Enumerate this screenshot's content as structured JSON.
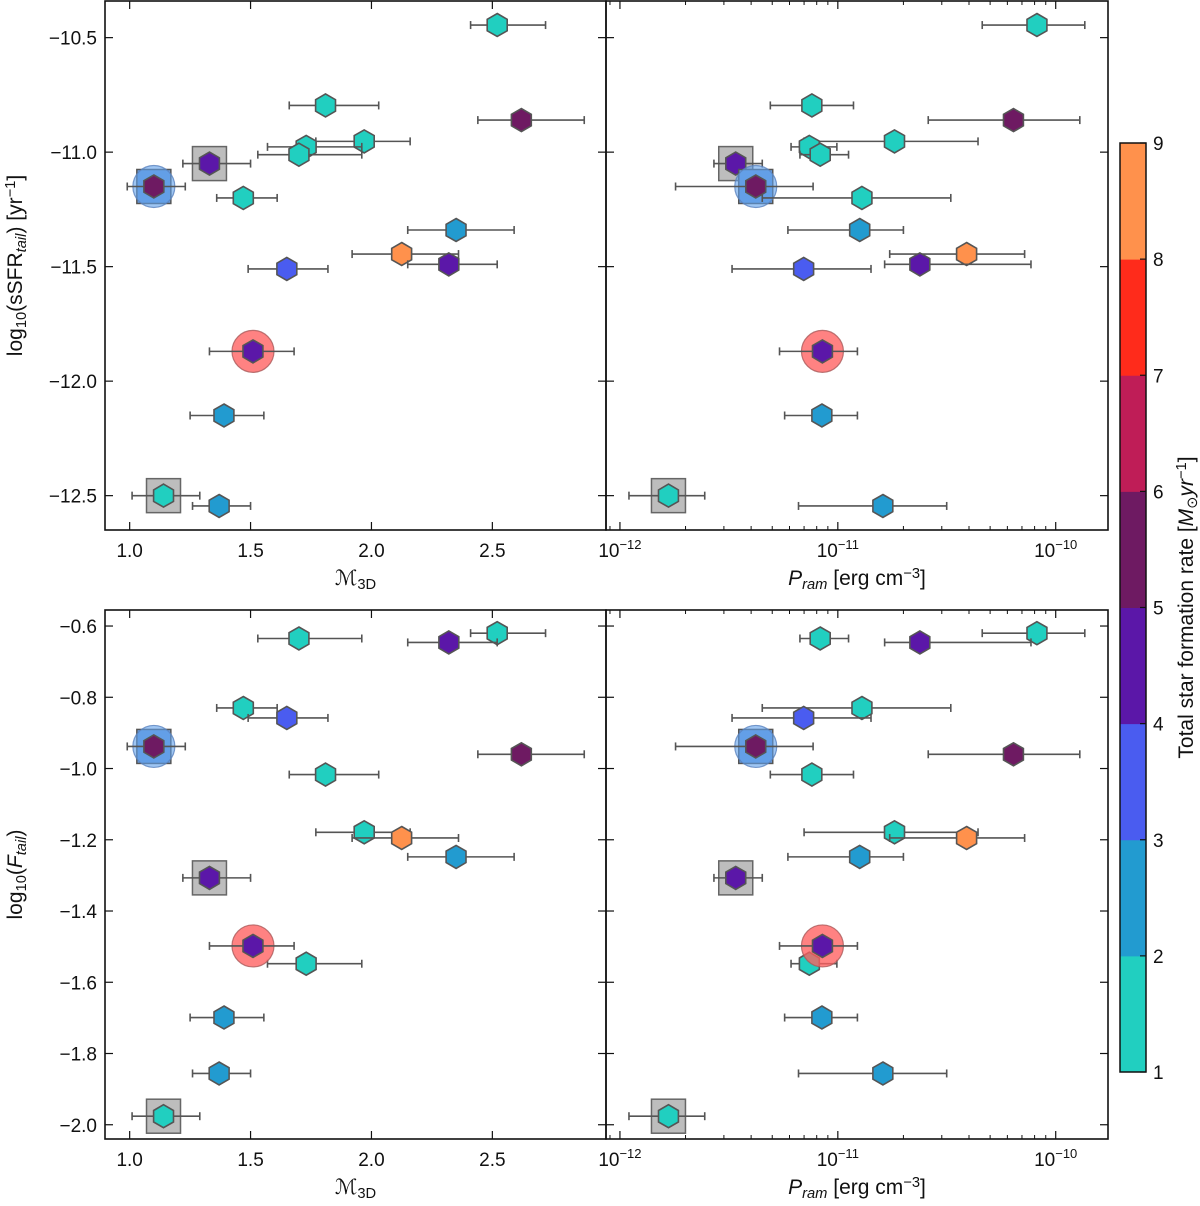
{
  "chart_data": {
    "type": "scatter",
    "panels": [
      {
        "id": "top-left",
        "x_key": "mach",
        "y_key": "log_ssfr",
        "xscale": "linear",
        "xlim": [
          0.898,
          2.97
        ],
        "ylim": [
          -12.65,
          -10.34
        ],
        "xticks": [
          1.0,
          1.5,
          2.0,
          2.5
        ],
        "xtick_labels": [
          "1.0",
          "1.5",
          "2.0",
          "2.5"
        ],
        "yticks": [
          -10.5,
          -11.0,
          -11.5,
          -12.0,
          -12.5
        ],
        "ytick_labels": [
          "−10.5",
          "−11.0",
          "−11.5",
          "−12.0",
          "−12.5"
        ],
        "xlabel": [
          {
            "t": "ℳ",
            "s": "i"
          },
          {
            "t": "3D",
            "s": "sub"
          }
        ],
        "ylabel": [
          {
            "t": "log"
          },
          {
            "t": "10",
            "s": "sub"
          },
          {
            "t": "(sSFR"
          },
          {
            "t": "tail",
            "s": "subi"
          },
          {
            "t": ") [yr"
          },
          {
            "t": "−1",
            "s": "sup"
          },
          {
            "t": "]"
          }
        ]
      },
      {
        "id": "top-right",
        "x_key": "pram",
        "y_key": "log_ssfr",
        "xscale": "log",
        "xlim": [
          -12.064,
          -9.76
        ],
        "ylim": [
          -12.65,
          -10.34
        ],
        "xticks": [
          -12,
          -11,
          -10
        ],
        "xtick_labels": [
          [
            "10",
            "−12"
          ],
          [
            "10",
            "−11"
          ],
          [
            "10",
            "−10"
          ]
        ],
        "yticks": [
          -10.5,
          -11.0,
          -11.5,
          -12.0,
          -12.5
        ],
        "ytick_labels": [],
        "xlabel": [
          {
            "t": "P",
            "s": "i"
          },
          {
            "t": "ram",
            "s": "subi"
          },
          {
            "t": " [erg cm"
          },
          {
            "t": "−3",
            "s": "sup"
          },
          {
            "t": "]"
          }
        ],
        "ylabel": []
      },
      {
        "id": "bottom-left",
        "x_key": "mach",
        "y_key": "log_ftail",
        "xscale": "linear",
        "xlim": [
          0.898,
          2.97
        ],
        "ylim": [
          -2.04,
          -0.555
        ],
        "xticks": [
          1.0,
          1.5,
          2.0,
          2.5
        ],
        "xtick_labels": [
          "1.0",
          "1.5",
          "2.0",
          "2.5"
        ],
        "yticks": [
          -0.6,
          -0.8,
          -1.0,
          -1.2,
          -1.4,
          -1.6,
          -1.8,
          -2.0
        ],
        "ytick_labels": [
          "−0.6",
          "−0.8",
          "−1.0",
          "−1.2",
          "−1.4",
          "−1.6",
          "−1.8",
          "−2.0"
        ],
        "xlabel": [
          {
            "t": "ℳ",
            "s": "i"
          },
          {
            "t": "3D",
            "s": "sub"
          }
        ],
        "ylabel": [
          {
            "t": "log"
          },
          {
            "t": "10",
            "s": "sub"
          },
          {
            "t": "("
          },
          {
            "t": "F",
            "s": "i"
          },
          {
            "t": "tail",
            "s": "subi"
          },
          {
            "t": ")"
          }
        ]
      },
      {
        "id": "bottom-right",
        "x_key": "pram",
        "y_key": "log_ftail",
        "xscale": "log",
        "xlim": [
          -12.064,
          -9.76
        ],
        "ylim": [
          -2.04,
          -0.555
        ],
        "xticks": [
          -12,
          -11,
          -10
        ],
        "xtick_labels": [
          [
            "10",
            "−12"
          ],
          [
            "10",
            "−11"
          ],
          [
            "10",
            "−10"
          ]
        ],
        "yticks": [
          -0.6,
          -0.8,
          -1.0,
          -1.2,
          -1.4,
          -1.6,
          -1.8,
          -2.0
        ],
        "ytick_labels": [],
        "xlabel": [
          {
            "t": "P",
            "s": "i"
          },
          {
            "t": "ram",
            "s": "subi"
          },
          {
            "t": " [erg cm"
          },
          {
            "t": "−3",
            "s": "sup"
          },
          {
            "t": "]"
          }
        ],
        "ylabel": []
      }
    ],
    "colorbar": {
      "label": [
        {
          "t": "Total star formation rate ["
        },
        {
          "t": "M",
          "s": "i"
        },
        {
          "t": "⊙",
          "s": "sub"
        },
        {
          "t": "yr",
          "s": "i"
        },
        {
          "t": "−1",
          "s": "sup"
        },
        {
          "t": "]"
        }
      ],
      "bounds": [
        1,
        2,
        3,
        4,
        5,
        6,
        7,
        8,
        9
      ],
      "tick_labels": [
        "1",
        "2",
        "3",
        "4",
        "5",
        "6",
        "7",
        "8",
        "9"
      ],
      "colors": [
        "#21cfc0",
        "#229bd0",
        "#4a5cf0",
        "#5b17a8",
        "#6e1a62",
        "#bf1d57",
        "#ff2b1b",
        "#ff914c"
      ]
    },
    "galaxies": [
      {
        "mach": 2.52,
        "mach_err": [
          2.41,
          2.72
        ],
        "pram": 8.2e-11,
        "pram_err": [
          4.6e-11,
          1.36e-10
        ],
        "log_ssfr": -10.445,
        "log_ftail": -0.62,
        "sfr_bin": 1,
        "highlight": ""
      },
      {
        "mach": 1.81,
        "mach_err": [
          1.66,
          2.03
        ],
        "pram": 7.6e-12,
        "pram_err": [
          4.9e-12,
          1.18e-11
        ],
        "log_ssfr": -10.796,
        "log_ftail": -1.017,
        "sfr_bin": 1,
        "highlight": ""
      },
      {
        "mach": 2.62,
        "mach_err": [
          2.44,
          2.88
        ],
        "pram": 6.4e-11,
        "pram_err": [
          2.6e-11,
          1.29e-10
        ],
        "log_ssfr": -10.86,
        "log_ftail": -0.96,
        "sfr_bin": 5,
        "highlight": ""
      },
      {
        "mach": 1.97,
        "mach_err": [
          1.77,
          2.16
        ],
        "pram": 1.82e-11,
        "pram_err": [
          7e-12,
          4.4e-11
        ],
        "log_ssfr": -10.953,
        "log_ftail": -1.179,
        "sfr_bin": 1,
        "highlight": ""
      },
      {
        "mach": 1.73,
        "mach_err": [
          1.57,
          1.96
        ],
        "pram": 7.4e-12,
        "pram_err": [
          6.1e-12,
          9.9e-12
        ],
        "log_ssfr": -10.977,
        "log_ftail": -1.548,
        "sfr_bin": 1,
        "highlight": ""
      },
      {
        "mach": 1.7,
        "mach_err": [
          1.53,
          1.96
        ],
        "pram": 8.3e-12,
        "pram_err": [
          6.7e-12,
          1.12e-11
        ],
        "log_ssfr": -11.011,
        "log_ftail": -0.635,
        "sfr_bin": 1,
        "highlight": ""
      },
      {
        "mach": 1.33,
        "mach_err": [
          1.22,
          1.5
        ],
        "pram": 3.4e-12,
        "pram_err": [
          2.7e-12,
          4.5e-12
        ],
        "log_ssfr": -11.05,
        "log_ftail": -1.307,
        "sfr_bin": 4,
        "highlight": "grey-square"
      },
      {
        "mach": 1.1,
        "mach_err": [
          0.99,
          1.23
        ],
        "pram": 4.2e-12,
        "pram_err": [
          1.8e-12,
          7.7e-12
        ],
        "log_ssfr": -11.15,
        "log_ftail": -0.938,
        "sfr_bin": 5,
        "highlight": "blue-circle"
      },
      {
        "mach": 1.47,
        "mach_err": [
          1.36,
          1.61
        ],
        "pram": 1.29e-11,
        "pram_err": [
          4.5e-12,
          3.3e-11
        ],
        "log_ssfr": -11.2,
        "log_ftail": -0.83,
        "sfr_bin": 1,
        "highlight": ""
      },
      {
        "mach": 2.35,
        "mach_err": [
          2.15,
          2.59
        ],
        "pram": 1.26e-11,
        "pram_err": [
          5.9e-12,
          2e-11
        ],
        "log_ssfr": -11.34,
        "log_ftail": -1.248,
        "sfr_bin": 2,
        "highlight": ""
      },
      {
        "mach": 2.125,
        "mach_err": [
          1.92,
          2.36
        ],
        "pram": 3.9e-11,
        "pram_err": [
          1.73e-11,
          7.2e-11
        ],
        "log_ssfr": -11.445,
        "log_ftail": -1.195,
        "sfr_bin": 8,
        "highlight": ""
      },
      {
        "mach": 2.32,
        "mach_err": [
          2.15,
          2.52
        ],
        "pram": 2.38e-11,
        "pram_err": [
          1.64e-11,
          7.7e-11
        ],
        "log_ssfr": -11.49,
        "log_ftail": -0.646,
        "sfr_bin": 4,
        "highlight": ""
      },
      {
        "mach": 1.65,
        "mach_err": [
          1.49,
          1.82
        ],
        "pram": 6.97e-12,
        "pram_err": [
          3.27e-12,
          1.42e-11
        ],
        "log_ssfr": -11.51,
        "log_ftail": -0.858,
        "sfr_bin": 3,
        "highlight": ""
      },
      {
        "mach": 1.51,
        "mach_err": [
          1.33,
          1.68
        ],
        "pram": 8.5e-12,
        "pram_err": [
          5.4e-12,
          1.23e-11
        ],
        "log_ssfr": -11.87,
        "log_ftail": -1.498,
        "sfr_bin": 4,
        "highlight": "red-circle"
      },
      {
        "mach": 1.39,
        "mach_err": [
          1.25,
          1.555
        ],
        "pram": 8.45e-12,
        "pram_err": [
          5.7e-12,
          1.23e-11
        ],
        "log_ssfr": -12.15,
        "log_ftail": -1.699,
        "sfr_bin": 2,
        "highlight": ""
      },
      {
        "mach": 1.14,
        "mach_err": [
          1.01,
          1.29
        ],
        "pram": 1.67e-12,
        "pram_err": [
          1.1e-12,
          2.45e-12
        ],
        "log_ssfr": -12.5,
        "log_ftail": -1.976,
        "sfr_bin": 1,
        "highlight": "grey-square"
      },
      {
        "mach": 1.37,
        "mach_err": [
          1.26,
          1.5
        ],
        "pram": 1.61e-11,
        "pram_err": [
          6.6e-12,
          3.16e-11
        ],
        "log_ssfr": -12.545,
        "log_ftail": -1.856,
        "sfr_bin": 2,
        "highlight": ""
      }
    ]
  }
}
